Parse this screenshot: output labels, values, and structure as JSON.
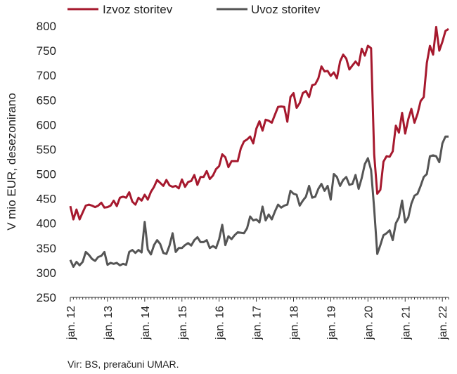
{
  "chart_data": {
    "type": "line",
    "title": "",
    "xlabel": "",
    "ylabel": "V mio EUR, desezonirano",
    "ylim": [
      250,
      800
    ],
    "yticks": [
      250,
      300,
      350,
      400,
      450,
      500,
      550,
      600,
      650,
      700,
      750,
      800
    ],
    "x_tick_labels": [
      "jan. 12",
      "jan. 13",
      "jan. 14",
      "jan. 15",
      "jan. 16",
      "jan. 17",
      "jan. 18",
      "jan. 19",
      "jan. 20",
      "jan. 21",
      "jan. 22"
    ],
    "x_start": "2012-01",
    "x_frequency": "monthly",
    "legend_position": "top",
    "grid": false,
    "series": [
      {
        "name": "Izvoz storitev",
        "color": "#A6192E",
        "values": [
          435,
          408,
          428,
          408,
          422,
          436,
          438,
          436,
          433,
          436,
          442,
          432,
          433,
          436,
          446,
          435,
          452,
          454,
          452,
          463,
          444,
          438,
          452,
          446,
          458,
          448,
          464,
          474,
          488,
          482,
          476,
          488,
          477,
          474,
          476,
          471,
          489,
          474,
          484,
          486,
          498,
          478,
          494,
          494,
          506,
          490,
          497,
          510,
          516,
          540,
          534,
          514,
          526,
          526,
          526,
          552,
          566,
          570,
          576,
          562,
          592,
          607,
          588,
          610,
          608,
          604,
          620,
          636,
          637,
          636,
          606,
          656,
          664,
          634,
          644,
          664,
          668,
          656,
          680,
          682,
          694,
          718,
          708,
          709,
          699,
          706,
          694,
          728,
          742,
          734,
          712,
          720,
          728,
          720,
          754,
          740,
          760,
          755,
          540,
          460,
          468,
          525,
          536,
          535,
          546,
          598,
          584,
          624,
          582,
          611,
          632,
          604,
          622,
          648,
          656,
          725,
          760,
          742,
          798,
          750,
          768,
          790,
          794
        ]
      },
      {
        "name": "Uvoz storitev",
        "color": "#555555",
        "values": [
          326,
          312,
          322,
          315,
          322,
          342,
          336,
          328,
          324,
          332,
          334,
          342,
          316,
          320,
          318,
          320,
          315,
          318,
          316,
          342,
          346,
          340,
          346,
          341,
          403,
          347,
          337,
          356,
          366,
          358,
          340,
          338,
          355,
          380,
          342,
          350,
          350,
          356,
          360,
          355,
          366,
          372,
          362,
          362,
          366,
          350,
          354,
          350,
          368,
          397,
          356,
          374,
          368,
          376,
          382,
          381,
          380,
          390,
          414,
          406,
          408,
          402,
          434,
          406,
          418,
          408,
          424,
          438,
          432,
          436,
          438,
          466,
          460,
          458,
          436,
          446,
          454,
          476,
          452,
          454,
          470,
          480,
          466,
          476,
          448,
          500,
          494,
          476,
          488,
          494,
          478,
          480,
          498,
          470,
          492,
          520,
          532,
          508,
          430,
          338,
          356,
          376,
          380,
          386,
          366,
          400,
          412,
          446,
          402,
          412,
          440,
          456,
          460,
          476,
          494,
          500,
          536,
          538,
          536,
          524,
          562,
          576,
          576
        ]
      }
    ]
  },
  "legend": {
    "items": [
      "Izvoz storitev",
      "Uvoz storitev"
    ]
  },
  "source_note": "Vir: BS, preračuni UMAR."
}
